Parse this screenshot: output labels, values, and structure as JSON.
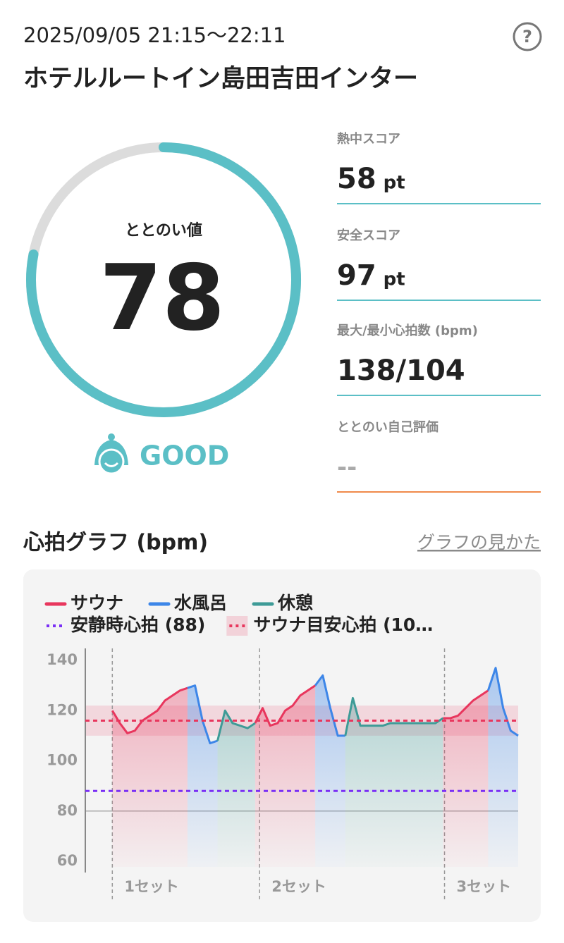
{
  "header": {
    "datetime": "2025/09/05 21:15～22:11",
    "place": "ホテルルートイン島田吉田インター",
    "help": "?"
  },
  "gauge": {
    "label": "ととのい値",
    "value": 78,
    "rating": "GOOD"
  },
  "stats": [
    {
      "label": "熱中スコア",
      "value": 58,
      "unit": "pt"
    },
    {
      "label": "安全スコア",
      "value": 97,
      "unit": "pt"
    },
    {
      "label": "最大/最小心拍数 (bpm)",
      "value": "138/104"
    },
    {
      "label": "ととのい自己評価",
      "value": "--"
    }
  ],
  "chart_data": {
    "type": "line",
    "title": "心拍グラフ (bpm)",
    "link": "グラフの見かた",
    "x": [
      0,
      1,
      2,
      3,
      4,
      5,
      6,
      7,
      8,
      9,
      10,
      11,
      12,
      13,
      14,
      15,
      16,
      17,
      18,
      19,
      20,
      21,
      22,
      23,
      24,
      25,
      26,
      27,
      28,
      29,
      30,
      31,
      32,
      33,
      34,
      35,
      36,
      37,
      38,
      39,
      40,
      41,
      42,
      43,
      44,
      45,
      46,
      47,
      48,
      49,
      50,
      51,
      52,
      53,
      54,
      55,
      56
    ],
    "xlim": [
      0,
      56
    ],
    "ylim": [
      60,
      140
    ],
    "yticks": [
      60,
      80,
      100,
      120,
      140
    ],
    "gridlines": [
      80
    ],
    "series": [
      {
        "name": "サウナ",
        "color": "#e8365d",
        "values": [
          null,
          null,
          120,
          115,
          111,
          112,
          116,
          118,
          120,
          124,
          126,
          128,
          129,
          null,
          null,
          null,
          null,
          null,
          null,
          null,
          null,
          115,
          121,
          114,
          115,
          120,
          122,
          126,
          128,
          130,
          null,
          null,
          null,
          null,
          null,
          null,
          null,
          null,
          null,
          null,
          null,
          null,
          null,
          null,
          null,
          null,
          117,
          117,
          118,
          121,
          124,
          126,
          128,
          null,
          null,
          null,
          null
        ]
      },
      {
        "name": "水風呂",
        "color": "#3d86e8",
        "values": [
          null,
          null,
          null,
          null,
          null,
          null,
          null,
          null,
          null,
          null,
          null,
          null,
          129,
          130,
          116,
          107,
          108,
          null,
          null,
          null,
          null,
          null,
          null,
          null,
          null,
          null,
          null,
          null,
          null,
          130,
          134,
          121,
          110,
          110,
          null,
          null,
          null,
          null,
          null,
          null,
          null,
          null,
          null,
          null,
          null,
          null,
          null,
          null,
          null,
          null,
          null,
          null,
          128,
          137,
          121,
          112,
          110
        ]
      },
      {
        "name": "休憩",
        "color": "#3e9b97",
        "values": [
          null,
          null,
          null,
          null,
          null,
          null,
          null,
          null,
          null,
          null,
          null,
          null,
          null,
          null,
          null,
          null,
          108,
          120,
          115,
          114,
          113,
          115,
          null,
          null,
          null,
          null,
          null,
          null,
          null,
          null,
          null,
          null,
          null,
          110,
          125,
          114,
          114,
          114,
          114,
          115,
          115,
          115,
          115,
          115,
          115,
          115,
          117,
          null,
          null,
          null,
          null,
          null,
          null,
          null,
          null,
          null,
          null
        ]
      }
    ],
    "reference_lines": [
      {
        "name": "安静時心拍 (88)",
        "value": 88,
        "color": "#7a2ff5"
      },
      {
        "name": "サウナ目安心拍 (10…",
        "value": 116,
        "band": [
          110,
          122
        ],
        "color": "#e8365d"
      }
    ],
    "sets": [
      {
        "x": 2,
        "label": "1セット"
      },
      {
        "x": 21.6,
        "label": "2セット"
      },
      {
        "x": 46.2,
        "label": "3セット"
      }
    ]
  }
}
